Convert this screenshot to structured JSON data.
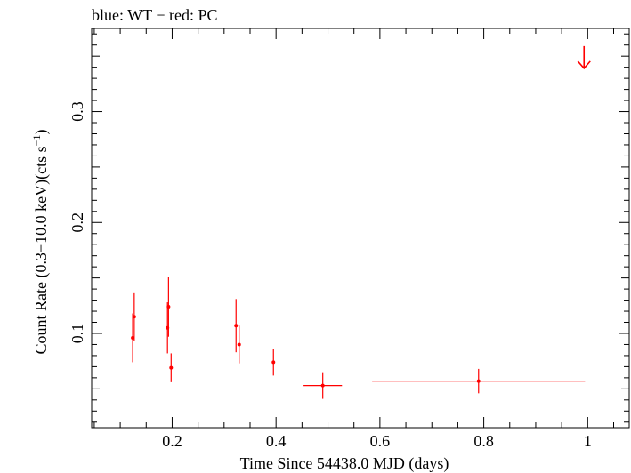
{
  "chart_data": {
    "type": "scatter",
    "title": "blue: WT − red: PC",
    "xlabel": "Time Since 54438.0 MJD (days)",
    "ylabel": "Count Rate (0.3−10.0 keV)(cts s",
    "ylabel_exponent": "−1",
    "ylabel_tail": ")",
    "xlim": [
      0.045,
      1.08
    ],
    "ylim": [
      0.015,
      0.375
    ],
    "x_ticks": [
      0.2,
      0.4,
      0.6,
      0.8,
      1
    ],
    "x_tick_labels": [
      "0.2",
      "0.4",
      "0.6",
      "0.8",
      "1"
    ],
    "y_ticks": [
      0.1,
      0.2,
      0.3
    ],
    "y_tick_labels": [
      "0.1",
      "0.2",
      "0.3"
    ],
    "grid": false,
    "series": [
      {
        "name": "PC",
        "color": "#ff0000",
        "points": [
          {
            "x": 0.124,
            "y": 0.096,
            "xerr": 0.002,
            "yerr_low": 0.022,
            "yerr_high": 0.022
          },
          {
            "x": 0.127,
            "y": 0.115,
            "xerr": 0.002,
            "yerr_low": 0.022,
            "yerr_high": 0.022
          },
          {
            "x": 0.191,
            "y": 0.105,
            "xerr": 0.002,
            "yerr_low": 0.023,
            "yerr_high": 0.023
          },
          {
            "x": 0.193,
            "y": 0.124,
            "xerr": 0.002,
            "yerr_low": 0.027,
            "yerr_high": 0.027
          },
          {
            "x": 0.198,
            "y": 0.069,
            "xerr": 0.003,
            "yerr_low": 0.013,
            "yerr_high": 0.013
          },
          {
            "x": 0.323,
            "y": 0.107,
            "xerr": 0.003,
            "yerr_low": 0.024,
            "yerr_high": 0.024
          },
          {
            "x": 0.329,
            "y": 0.09,
            "xerr": 0.003,
            "yerr_low": 0.017,
            "yerr_high": 0.017
          },
          {
            "x": 0.395,
            "y": 0.074,
            "xerr": 0.003,
            "yerr_low": 0.012,
            "yerr_high": 0.012
          },
          {
            "x": 0.49,
            "y": 0.053,
            "xerr": 0.037,
            "yerr_low": 0.012,
            "yerr_high": 0.012
          },
          {
            "x": 0.79,
            "y": 0.057,
            "xerr": 0.205,
            "yerr_low": 0.011,
            "yerr_high": 0.011
          }
        ],
        "upper_limits": [
          {
            "x": 0.993,
            "y": 0.339
          }
        ]
      }
    ]
  }
}
